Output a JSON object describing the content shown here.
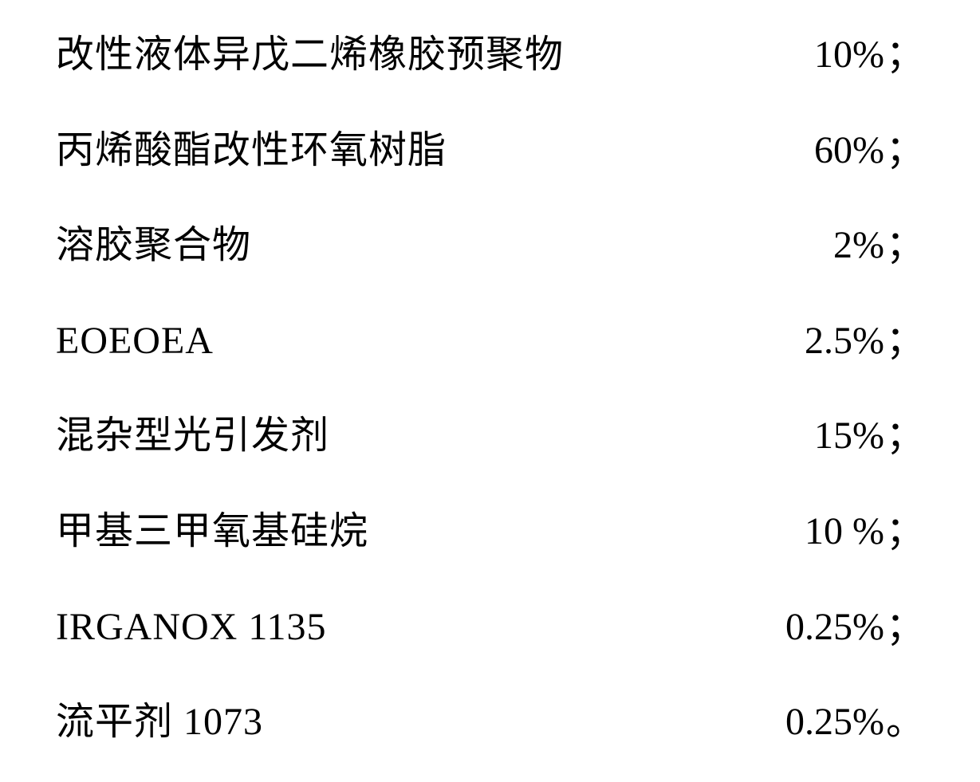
{
  "formula": {
    "background_color": "#ffffff",
    "text_color": "#000000",
    "font_size": 48,
    "line_spacing": 62,
    "rows": [
      {
        "ingredient": "改性液体异戊二烯橡胶预聚物",
        "value": "10%",
        "punct": "；"
      },
      {
        "ingredient": "丙烯酸酯改性环氧树脂",
        "value": "60%",
        "punct": "；"
      },
      {
        "ingredient": "溶胶聚合物",
        "value": "2%",
        "punct": "；"
      },
      {
        "ingredient": "EOEOEA",
        "value": "2.5%",
        "punct": "；"
      },
      {
        "ingredient": "混杂型光引发剂",
        "value": "15%",
        "punct": "；"
      },
      {
        "ingredient": "甲基三甲氧基硅烷",
        "value": "10 %",
        "punct": "；"
      },
      {
        "ingredient": "IRGANOX 1135",
        "value": "0.25%",
        "punct": "；"
      },
      {
        "ingredient": "流平剂 1073",
        "value": "0.25%",
        "punct": "。"
      }
    ]
  }
}
